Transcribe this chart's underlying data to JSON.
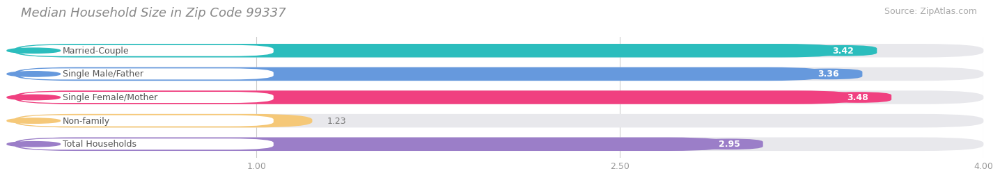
{
  "title": "Median Household Size in Zip Code 99337",
  "source": "Source: ZipAtlas.com",
  "categories": [
    "Married-Couple",
    "Single Male/Father",
    "Single Female/Mother",
    "Non-family",
    "Total Households"
  ],
  "values": [
    3.42,
    3.36,
    3.48,
    1.23,
    2.95
  ],
  "bar_colors": [
    "#2bbdbd",
    "#6699dd",
    "#f04080",
    "#f5c878",
    "#9b7ec8"
  ],
  "bar_bg_colors": [
    "#eeeeee",
    "#eeeeee",
    "#eeeeee",
    "#eeeeee",
    "#eeeeee"
  ],
  "label_bg_color": "#ffffff",
  "label_text_colors": [
    "#2bbdbd",
    "#6699dd",
    "#f04080",
    "#c8a050",
    "#9b7ec8"
  ],
  "value_labels": [
    "3.42",
    "3.36",
    "3.48",
    "1.23",
    "2.95"
  ],
  "xlim": [
    0.0,
    4.0
  ],
  "xticks": [
    1.0,
    2.5,
    4.0
  ],
  "xtick_labels": [
    "1.00",
    "2.50",
    "4.00"
  ],
  "title_fontsize": 13,
  "source_fontsize": 9,
  "label_fontsize": 9,
  "value_fontsize": 9,
  "background_color": "#ffffff"
}
